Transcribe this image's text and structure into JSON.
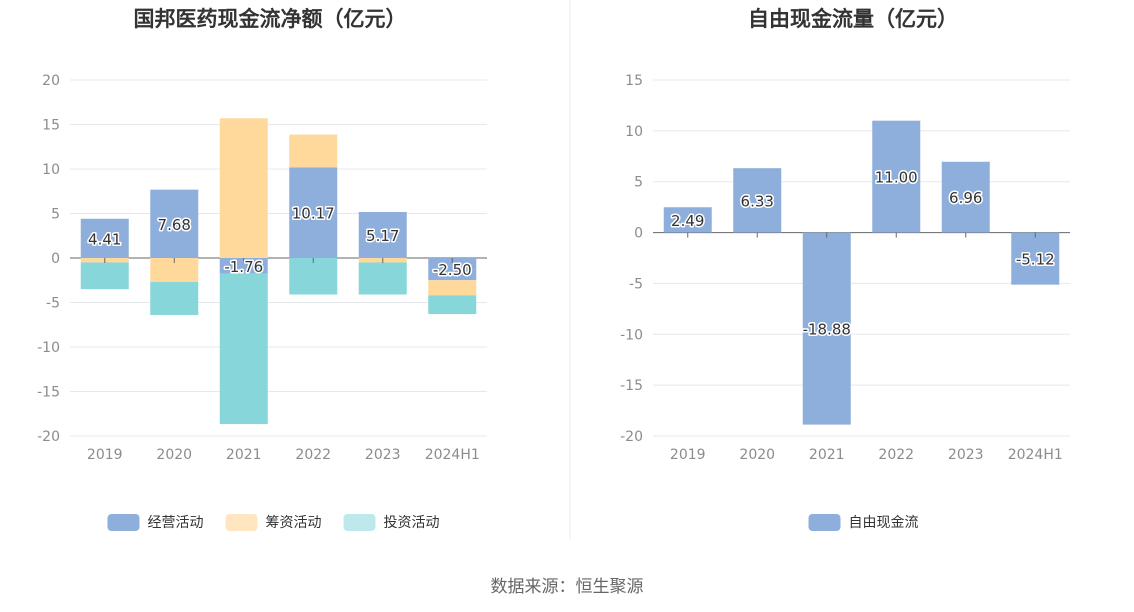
{
  "source": "数据来源：恒生聚源",
  "chart_data": [
    {
      "type": "bar",
      "stacked": true,
      "title": "国邦医药现金流净额（亿元）",
      "categories": [
        "2019",
        "2020",
        "2021",
        "2022",
        "2023",
        "2024H1"
      ],
      "ylim": [
        -20,
        20
      ],
      "yticks": [
        20,
        15,
        10,
        5,
        0,
        -5,
        -10,
        -15,
        -20
      ],
      "grid": true,
      "legend_position": "bottom",
      "series": [
        {
          "name": "经营活动",
          "color": "#8eaedb",
          "values": [
            4.41,
            7.68,
            -1.76,
            10.17,
            5.17,
            -2.5
          ],
          "labels": [
            "4.41",
            "7.68",
            "-1.76",
            "10.17",
            "5.17",
            "-2.50"
          ]
        },
        {
          "name": "筹资活动",
          "color": "#ffd99b",
          "values": [
            -0.5,
            -2.7,
            15.7,
            3.7,
            -0.5,
            -1.7
          ]
        },
        {
          "name": "投资活动",
          "color": "#86d6da",
          "values": [
            -3.0,
            -3.7,
            -16.9,
            -4.1,
            -3.6,
            -2.1
          ]
        }
      ],
      "legend_colors": [
        "#8eaedb",
        "#ffe6c0",
        "#bde9ec"
      ]
    },
    {
      "type": "bar",
      "title": "自由现金流量（亿元）",
      "categories": [
        "2019",
        "2020",
        "2021",
        "2022",
        "2023",
        "2024H1"
      ],
      "ylim": [
        -20,
        15
      ],
      "yticks": [
        15,
        10,
        5,
        0,
        -5,
        -10,
        -15,
        -20
      ],
      "grid": true,
      "legend_position": "bottom",
      "series": [
        {
          "name": "自由现金流",
          "color": "#8eaedb",
          "values": [
            2.49,
            6.33,
            -18.88,
            11.0,
            6.96,
            -5.12
          ],
          "labels": [
            "2.49",
            "6.33",
            "-18.88",
            "11.00",
            "6.96",
            "-5.12"
          ]
        }
      ]
    }
  ]
}
